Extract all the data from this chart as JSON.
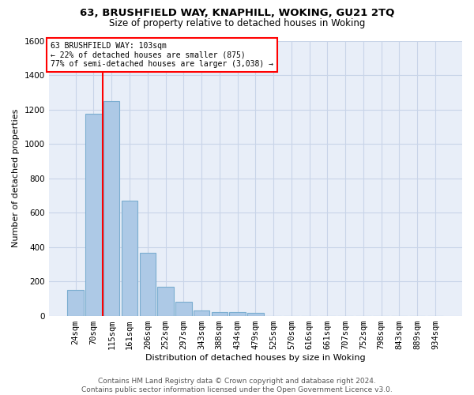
{
  "title1": "63, BRUSHFIELD WAY, KNAPHILL, WOKING, GU21 2TQ",
  "title2": "Size of property relative to detached houses in Woking",
  "xlabel": "Distribution of detached houses by size in Woking",
  "ylabel": "Number of detached properties",
  "categories": [
    "24sqm",
    "70sqm",
    "115sqm",
    "161sqm",
    "206sqm",
    "252sqm",
    "297sqm",
    "343sqm",
    "388sqm",
    "434sqm",
    "479sqm",
    "525sqm",
    "570sqm",
    "616sqm",
    "661sqm",
    "707sqm",
    "752sqm",
    "798sqm",
    "843sqm",
    "889sqm",
    "934sqm"
  ],
  "values": [
    150,
    1175,
    1250,
    670,
    365,
    168,
    80,
    32,
    22,
    20,
    15,
    0,
    0,
    0,
    0,
    0,
    0,
    0,
    0,
    0,
    0
  ],
  "bar_color": "#adc9e6",
  "bar_edge_color": "#7aadd0",
  "property_line_bin": 1.5,
  "annotation_text": "63 BRUSHFIELD WAY: 103sqm\n← 22% of detached houses are smaller (875)\n77% of semi-detached houses are larger (3,038) →",
  "annotation_box_color": "white",
  "annotation_box_edge_color": "red",
  "line_color": "red",
  "ylim": [
    0,
    1600
  ],
  "yticks": [
    0,
    200,
    400,
    600,
    800,
    1000,
    1200,
    1400,
    1600
  ],
  "grid_color": "#c8d4e8",
  "background_color": "#e8eef8",
  "footer1": "Contains HM Land Registry data © Crown copyright and database right 2024.",
  "footer2": "Contains public sector information licensed under the Open Government Licence v3.0.",
  "title1_fontsize": 9.5,
  "title2_fontsize": 8.5,
  "xlabel_fontsize": 8,
  "ylabel_fontsize": 8,
  "tick_fontsize": 7.5,
  "footer_fontsize": 6.5,
  "annotation_fontsize": 7
}
